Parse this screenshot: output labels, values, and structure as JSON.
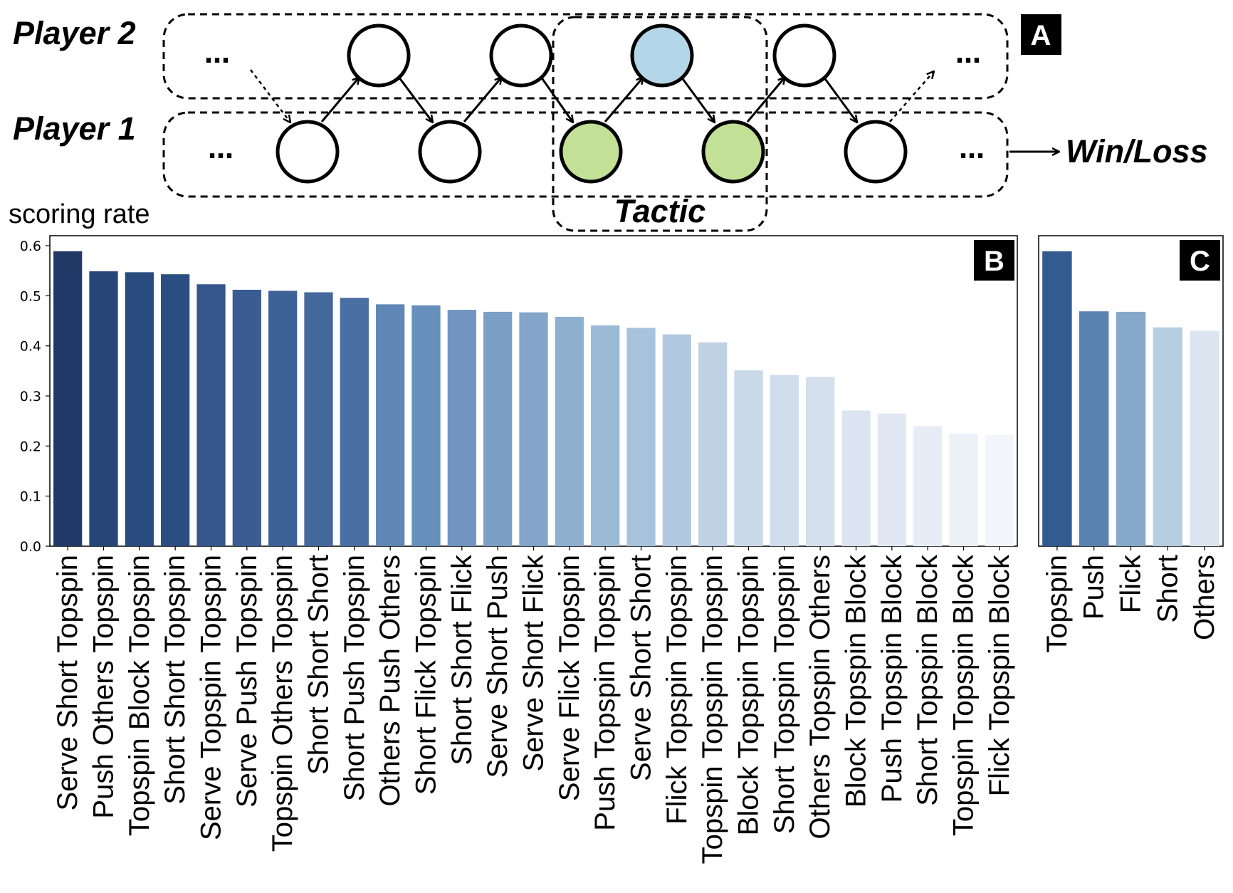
{
  "diagram": {
    "panel_label": "A",
    "player2_label": "Player 2",
    "player1_label": "Player 1",
    "ellipsis": "…",
    "outcome_label": "Win/Loss",
    "tactic_label": "Tactic",
    "colors": {
      "player2_highlight": "#b3d7e8",
      "player1_highlight": "#c2e096",
      "node_default": "#ffffff"
    }
  },
  "chart_data": [
    {
      "type": "bar",
      "panel_label": "B",
      "ylabel": "scoring rate",
      "ylim": [
        0,
        0.62
      ],
      "yticks": [
        "0.0",
        "0.1",
        "0.2",
        "0.3",
        "0.4",
        "0.5",
        "0.6"
      ],
      "grid": false,
      "categories": [
        "Serve Short Topspin",
        "Push Others Topspin",
        "Topspin Block Topspin",
        "Short Short Topspin",
        "Serve Topspin Topspin",
        "Serve Push Topspin",
        "Topspin Others Topspin",
        "Short Short Short",
        "Short Push Topspin",
        "Others Push Others",
        "Short Flick Topspin",
        "Short Short Flick",
        "Serve Short Push",
        "Serve Short Flick",
        "Serve Flick Topspin",
        "Push Topspin Topspin",
        "Serve Short Short",
        "Flick Topspin Topspin",
        "Topspin Topspin Topspin",
        "Block Topspin Topspin",
        "Short Topspin Topspin",
        "Others Topspin Others",
        "Block Topspin Block",
        "Push Topspin Block",
        "Short Topspin Block",
        "Topspin Topspin Block",
        "Flick Topspin Block"
      ],
      "values": [
        0.589,
        0.549,
        0.547,
        0.543,
        0.523,
        0.512,
        0.51,
        0.507,
        0.496,
        0.483,
        0.481,
        0.472,
        0.468,
        0.467,
        0.458,
        0.441,
        0.436,
        0.423,
        0.407,
        0.351,
        0.342,
        0.338,
        0.271,
        0.265,
        0.24,
        0.225,
        0.222
      ],
      "colors": [
        "#213966",
        "#274677",
        "#2a4b7e",
        "#2c4d81",
        "#35568c",
        "#3a5c93",
        "#3e6197",
        "#44679c",
        "#4a6fa3",
        "#5f86b4",
        "#6690bb",
        "#7095c0",
        "#7b9fc5",
        "#82a5c9",
        "#8db0cf",
        "#9abad5",
        "#a7c3db",
        "#b2cae0",
        "#bfd2e5",
        "#c9d9e8",
        "#d0ddeb",
        "#d4e0ed",
        "#dbe4f0",
        "#e1e8f3",
        "#e7edf6",
        "#ecf1f8",
        "#f2f5fb"
      ]
    },
    {
      "type": "bar",
      "panel_label": "C",
      "ylim": [
        0,
        0.62
      ],
      "grid": false,
      "categories": [
        "Topspin",
        "Push",
        "Flick",
        "Short",
        "Others"
      ],
      "values": [
        0.589,
        0.469,
        0.468,
        0.437,
        0.43
      ],
      "colors": [
        "#345b8f",
        "#5883b1",
        "#86a9cb",
        "#b7cde1",
        "#dbe5f0"
      ]
    }
  ]
}
